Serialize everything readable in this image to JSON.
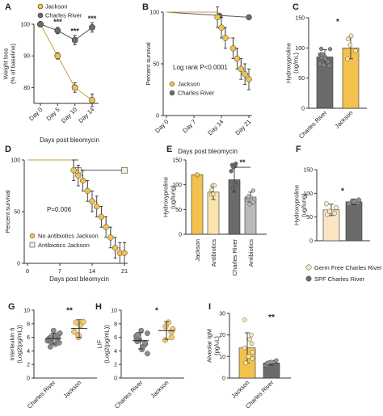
{
  "colors": {
    "jackson": "#f2c14e",
    "jackson_light": "#f9e5ad",
    "charles": "#6b6b6b",
    "charles_light": "#b9b9b9",
    "axis": "#333333"
  },
  "chart_data": [
    {
      "panel": "A",
      "type": "line",
      "ylabel": "Weight loss\n(% of baseline)",
      "xlabel": "Days post bleomycin",
      "categories": [
        "Day 0",
        "Day 5",
        "Day 10",
        "Day 14"
      ],
      "ylim": [
        75,
        100
      ],
      "yticks": [
        80,
        90,
        100
      ],
      "legend": [
        "Jackson",
        "Charles River"
      ],
      "series": [
        {
          "name": "Jackson",
          "values": [
            100,
            90,
            80,
            76
          ],
          "err": [
            0.5,
            1,
            1.5,
            2
          ]
        },
        {
          "name": "Charles River",
          "values": [
            100,
            98,
            95,
            99
          ],
          "err": [
            0.5,
            1,
            1.5,
            1.5
          ]
        }
      ],
      "annotations": [
        "***",
        "***",
        "***"
      ]
    },
    {
      "panel": "B",
      "type": "line",
      "ylabel": "Percent survival",
      "xlabel": "Days post bleomycin",
      "categories": [
        "Day 0",
        "Day 7",
        "Day 14",
        "Day 21"
      ],
      "ylim": [
        0,
        100
      ],
      "yticks": [
        0,
        50,
        100
      ],
      "text": "Log rank P<0.0001",
      "legend": [
        "Jackson",
        "Charles River"
      ],
      "series": [
        {
          "name": "Jackson",
          "x": [
            0,
            13,
            14,
            15,
            17,
            18,
            19,
            20,
            21
          ],
          "values": [
            100,
            95,
            85,
            75,
            65,
            55,
            45,
            40,
            35
          ]
        },
        {
          "name": "Charles River",
          "x": [
            0,
            21
          ],
          "values": [
            100,
            95
          ]
        }
      ]
    },
    {
      "panel": "C",
      "type": "bar",
      "ylabel": "Hydroxyproline\n(ug/mL)",
      "categories": [
        "Charles River",
        "Jackson"
      ],
      "values": [
        85,
        100
      ],
      "err": [
        12,
        18
      ],
      "ylim": [
        0,
        150
      ],
      "yticks": [
        0,
        50,
        100,
        150
      ],
      "annotations": [
        "*"
      ]
    },
    {
      "panel": "D",
      "type": "line",
      "ylabel": "Percent survival",
      "xlabel": "Days post bleomycin",
      "categories": [
        "0",
        "7",
        "14",
        "21"
      ],
      "ylim": [
        0,
        100
      ],
      "yticks": [
        0,
        50,
        100
      ],
      "text": "P=0.006",
      "legend": [
        "No antibiotics Jackson",
        "Antibiotics Jackson"
      ],
      "series": [
        {
          "name": "No antibiotics Jackson",
          "x": [
            0,
            10,
            11,
            12,
            13,
            14,
            15,
            16,
            17,
            18,
            19,
            20,
            21
          ],
          "values": [
            100,
            90,
            85,
            80,
            70,
            60,
            55,
            45,
            35,
            25,
            15,
            10,
            10
          ]
        },
        {
          "name": "Antibiotics Jackson",
          "x": [
            0,
            11,
            21
          ],
          "values": [
            100,
            90,
            90
          ]
        }
      ]
    },
    {
      "panel": "E",
      "type": "bar",
      "ylabel": "Hydroxyproline\n(ug/lung)",
      "categories": [
        "Jackson",
        "Antibiotics",
        "Charles River",
        "Antibiotics"
      ],
      "values": [
        120,
        85,
        110,
        75
      ],
      "err": [
        0,
        15,
        25,
        10
      ],
      "ylim": [
        0,
        150
      ],
      "yticks": [
        0,
        50,
        100,
        150
      ],
      "annotations": [
        "**"
      ]
    },
    {
      "panel": "F",
      "type": "bar",
      "ylabel": "Hydroxyproline\n(ug/lung)",
      "categories": [
        "Germ Free Charles River",
        "SPF Charles River"
      ],
      "values": [
        65,
        82
      ],
      "err": [
        12,
        6
      ],
      "ylim": [
        0,
        150
      ],
      "yticks": [
        0,
        50,
        100,
        150
      ],
      "legend": [
        "Germ Free Charles River",
        "SPF Charles River"
      ],
      "annotations": [
        "*"
      ]
    },
    {
      "panel": "G",
      "type": "scatter",
      "ylabel": "Interleukin 6\n(Log2(pg/mL))",
      "categories": [
        "Charles River",
        "Jackson"
      ],
      "means": [
        5.8,
        7.3
      ],
      "err": [
        0.8,
        1.3
      ],
      "ylim": [
        0,
        10
      ],
      "yticks": [
        0,
        2,
        4,
        6,
        8,
        10
      ],
      "annotations": [
        "**"
      ]
    },
    {
      "panel": "H",
      "type": "scatter",
      "ylabel": "LIF\n(Log2(pg/mL))",
      "categories": [
        "Charles River",
        "Jackson"
      ],
      "means": [
        5.5,
        7.0
      ],
      "err": [
        1.2,
        1.3
      ],
      "ylim": [
        0,
        10
      ],
      "yticks": [
        0,
        2,
        4,
        6,
        8,
        10
      ],
      "annotations": [
        "*"
      ]
    },
    {
      "panel": "I",
      "type": "bar",
      "ylabel": "Alveolar IgM\n(pg/uL)",
      "categories": [
        "Jackson",
        "Charles River"
      ],
      "values": [
        14,
        7
      ],
      "err": [
        7,
        1
      ],
      "ylim": [
        0,
        30
      ],
      "yticks": [
        0,
        10,
        20,
        30
      ],
      "annotations": [
        "**"
      ]
    }
  ]
}
